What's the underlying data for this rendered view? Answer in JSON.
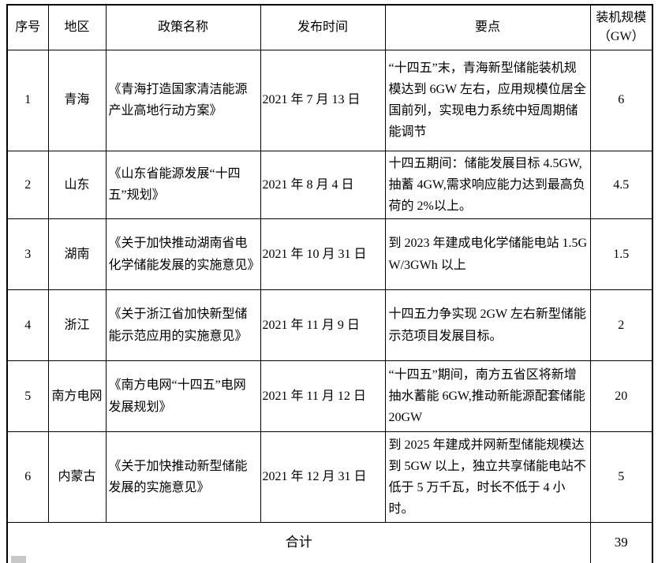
{
  "table": {
    "columns": [
      "序号",
      "地区",
      "政策名称",
      "发布时间",
      "要点",
      "装机规模\n（GW）"
    ],
    "rows": [
      {
        "no": "1",
        "region": "青海",
        "policy": "《青海打造国家清洁能源产业高地行动方案》",
        "date": "2021 年 7 月 13 日",
        "points": "“十四五”末，青海新型储能装机规模达到 6GW 左右，应用规模位居全国前列，实现电力系统中短周期储能调节",
        "capacity": "6"
      },
      {
        "no": "2",
        "region": "山东",
        "policy": "《山东省能源发展“十四五”规划》",
        "date": "2021 年 8 月 4 日",
        "points": "十四五期间：储能发展目标 4.5GW,抽蓄 4GW,需求响应能力达到最高负荷的 2%以上。",
        "capacity": "4.5"
      },
      {
        "no": "3",
        "region": "湖南",
        "policy": "《关于加快推动湖南省电化学储能发展的实施意见》",
        "date": "2021 年 10 月 31 日",
        "points": "到 2023 年建成电化学储能电站 1.5GW/3GWh 以上",
        "capacity": "1.5"
      },
      {
        "no": "4",
        "region": "浙江",
        "policy": "《关于浙江省加快新型储能示范应用的实施意见》",
        "date": "2021 年 11 月 9 日",
        "points": "十四五力争实现 2GW 左右新型储能示范项目发展目标。",
        "capacity": "2"
      },
      {
        "no": "5",
        "region": "南方电网",
        "policy": "《南方电网“十四五”电网发展规划》",
        "date": "2021 年 11 月 12 日",
        "points": "“十四五”期间，南方五省区将新增抽水蓄能 6GW,推动新能源配套储能 20GW",
        "capacity": "20"
      },
      {
        "no": "6",
        "region": "内蒙古",
        "policy": "《关于加快推动新型储能发展的实施意见》",
        "date": "2021 年 12 月 31 日",
        "points": "到 2025 年建成并网新型储能规模达到 5GW 以上，独立共享储能电站不低于 5 万千瓦，时长不低于 4 小时。",
        "capacity": "5"
      }
    ],
    "footer": {
      "label": "合计",
      "total": "39"
    }
  }
}
